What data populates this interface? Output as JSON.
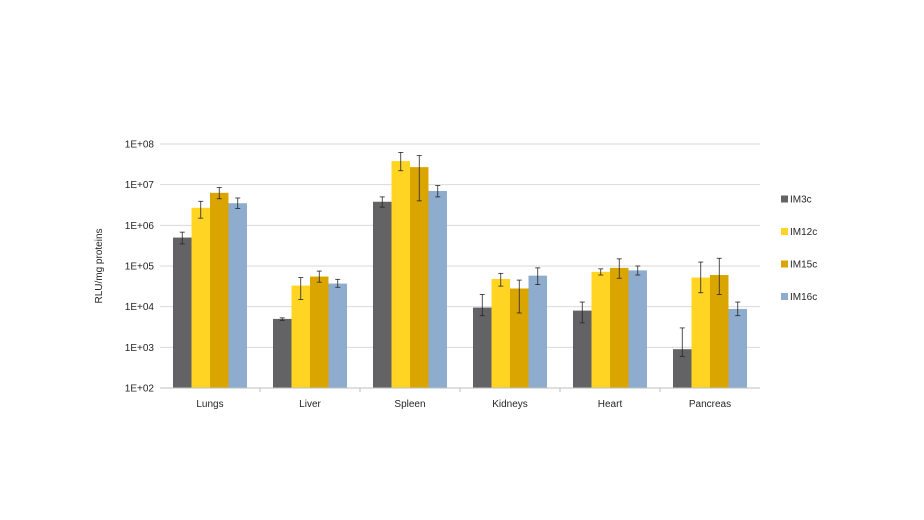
{
  "chart_data": {
    "type": "bar",
    "title": "",
    "xlabel": "",
    "ylabel": "RLU/mg proteins",
    "yscale": "log",
    "ylim": [
      100,
      100000000
    ],
    "yticks": [
      {
        "value": 100,
        "label": "1E+02"
      },
      {
        "value": 1000,
        "label": "1E+03"
      },
      {
        "value": 10000,
        "label": "1E+04"
      },
      {
        "value": 100000,
        "label": "1E+05"
      },
      {
        "value": 1000000,
        "label": "1E+06"
      },
      {
        "value": 10000000,
        "label": "1E+07"
      },
      {
        "value": 100000000,
        "label": "1E+08"
      }
    ],
    "grid": true,
    "legend_position": "right",
    "categories": [
      "Lungs",
      "Liver",
      "Spleen",
      "Kidneys",
      "Heart",
      "Pancreas"
    ],
    "series": [
      {
        "name": "IM3c",
        "color": "#636366",
        "values": [
          500000,
          5000,
          3800000,
          9500,
          8000,
          900
        ],
        "errors": [
          [
            350000,
            680000
          ],
          [
            4600,
            5300
          ],
          [
            2800000,
            5000000
          ],
          [
            6000,
            20000
          ],
          [
            4000,
            13000
          ],
          [
            600,
            3000
          ]
        ]
      },
      {
        "name": "IM12c",
        "color": "#FFD422",
        "values": [
          2700000,
          33000,
          38000000,
          48000,
          72000,
          52000
        ],
        "errors": [
          [
            1500000,
            3900000
          ],
          [
            15000,
            52000
          ],
          [
            22000000,
            62000000
          ],
          [
            32000,
            66000
          ],
          [
            60000,
            85000
          ],
          [
            22000,
            125000
          ]
        ]
      },
      {
        "name": "IM15c",
        "color": "#DBA500",
        "values": [
          6300000,
          55000,
          27000000,
          28000,
          90000,
          60000
        ],
        "errors": [
          [
            4500000,
            8500000
          ],
          [
            40000,
            75000
          ],
          [
            4000000,
            52000000
          ],
          [
            7000,
            45000
          ],
          [
            50000,
            150000
          ],
          [
            20000,
            155000
          ]
        ]
      },
      {
        "name": "IM16c",
        "color": "#8EACCE",
        "values": [
          3500000,
          37000,
          7000000,
          58000,
          78000,
          8800
        ],
        "errors": [
          [
            2600000,
            4700000
          ],
          [
            30000,
            47000
          ],
          [
            5000000,
            9500000
          ],
          [
            35000,
            90000
          ],
          [
            60000,
            100000
          ],
          [
            6000,
            13000
          ]
        ]
      }
    ]
  }
}
